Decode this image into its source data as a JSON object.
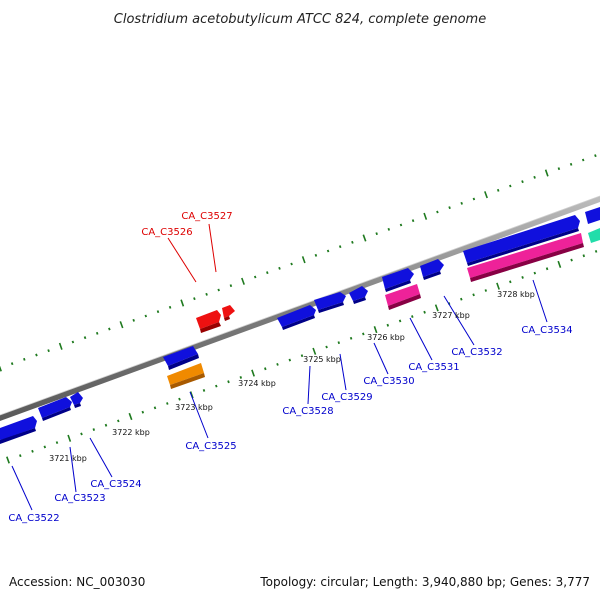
{
  "title": "Clostridium acetobutylicum ATCC 824, complete genome",
  "accession_text": "Accession: NC_003030",
  "summary_text": "Topology: circular; Length: 3,940,880 bp; Genes: 3,777",
  "colors": {
    "background": "#ffffff",
    "backbone": "#8a8a8a",
    "tick_marks": "#1f7a1f",
    "label_forward": "#dd0000",
    "label_reverse": "#0000cc"
  },
  "tick_labels": [
    {
      "text": "3721 kbp"
    },
    {
      "text": "3722 kbp"
    },
    {
      "text": "3723 kbp"
    },
    {
      "text": "3724 kbp"
    },
    {
      "text": "3725 kbp"
    },
    {
      "text": "3726 kbp"
    },
    {
      "text": "3727 kbp"
    },
    {
      "text": "3728 kbp"
    }
  ],
  "gene_labels": [
    {
      "text": "CA_C3522",
      "strand": "reverse"
    },
    {
      "text": "CA_C3523",
      "strand": "reverse"
    },
    {
      "text": "CA_C3524",
      "strand": "reverse"
    },
    {
      "text": "CA_C3525",
      "strand": "reverse"
    },
    {
      "text": "CA_C3526",
      "strand": "forward"
    },
    {
      "text": "CA_C3527",
      "strand": "forward"
    },
    {
      "text": "CA_C3528",
      "strand": "reverse"
    },
    {
      "text": "CA_C3529",
      "strand": "reverse"
    },
    {
      "text": "CA_C3530",
      "strand": "reverse"
    },
    {
      "text": "CA_C3531",
      "strand": "reverse"
    },
    {
      "text": "CA_C3532",
      "strand": "reverse"
    },
    {
      "text": "CA_C3534",
      "strand": "reverse"
    }
  ],
  "feature_colors": {
    "blue": "#1010dd",
    "red": "#ee1111",
    "orange": "#f08a00",
    "pink": "#ee2299",
    "teal": "#22ddaa"
  }
}
